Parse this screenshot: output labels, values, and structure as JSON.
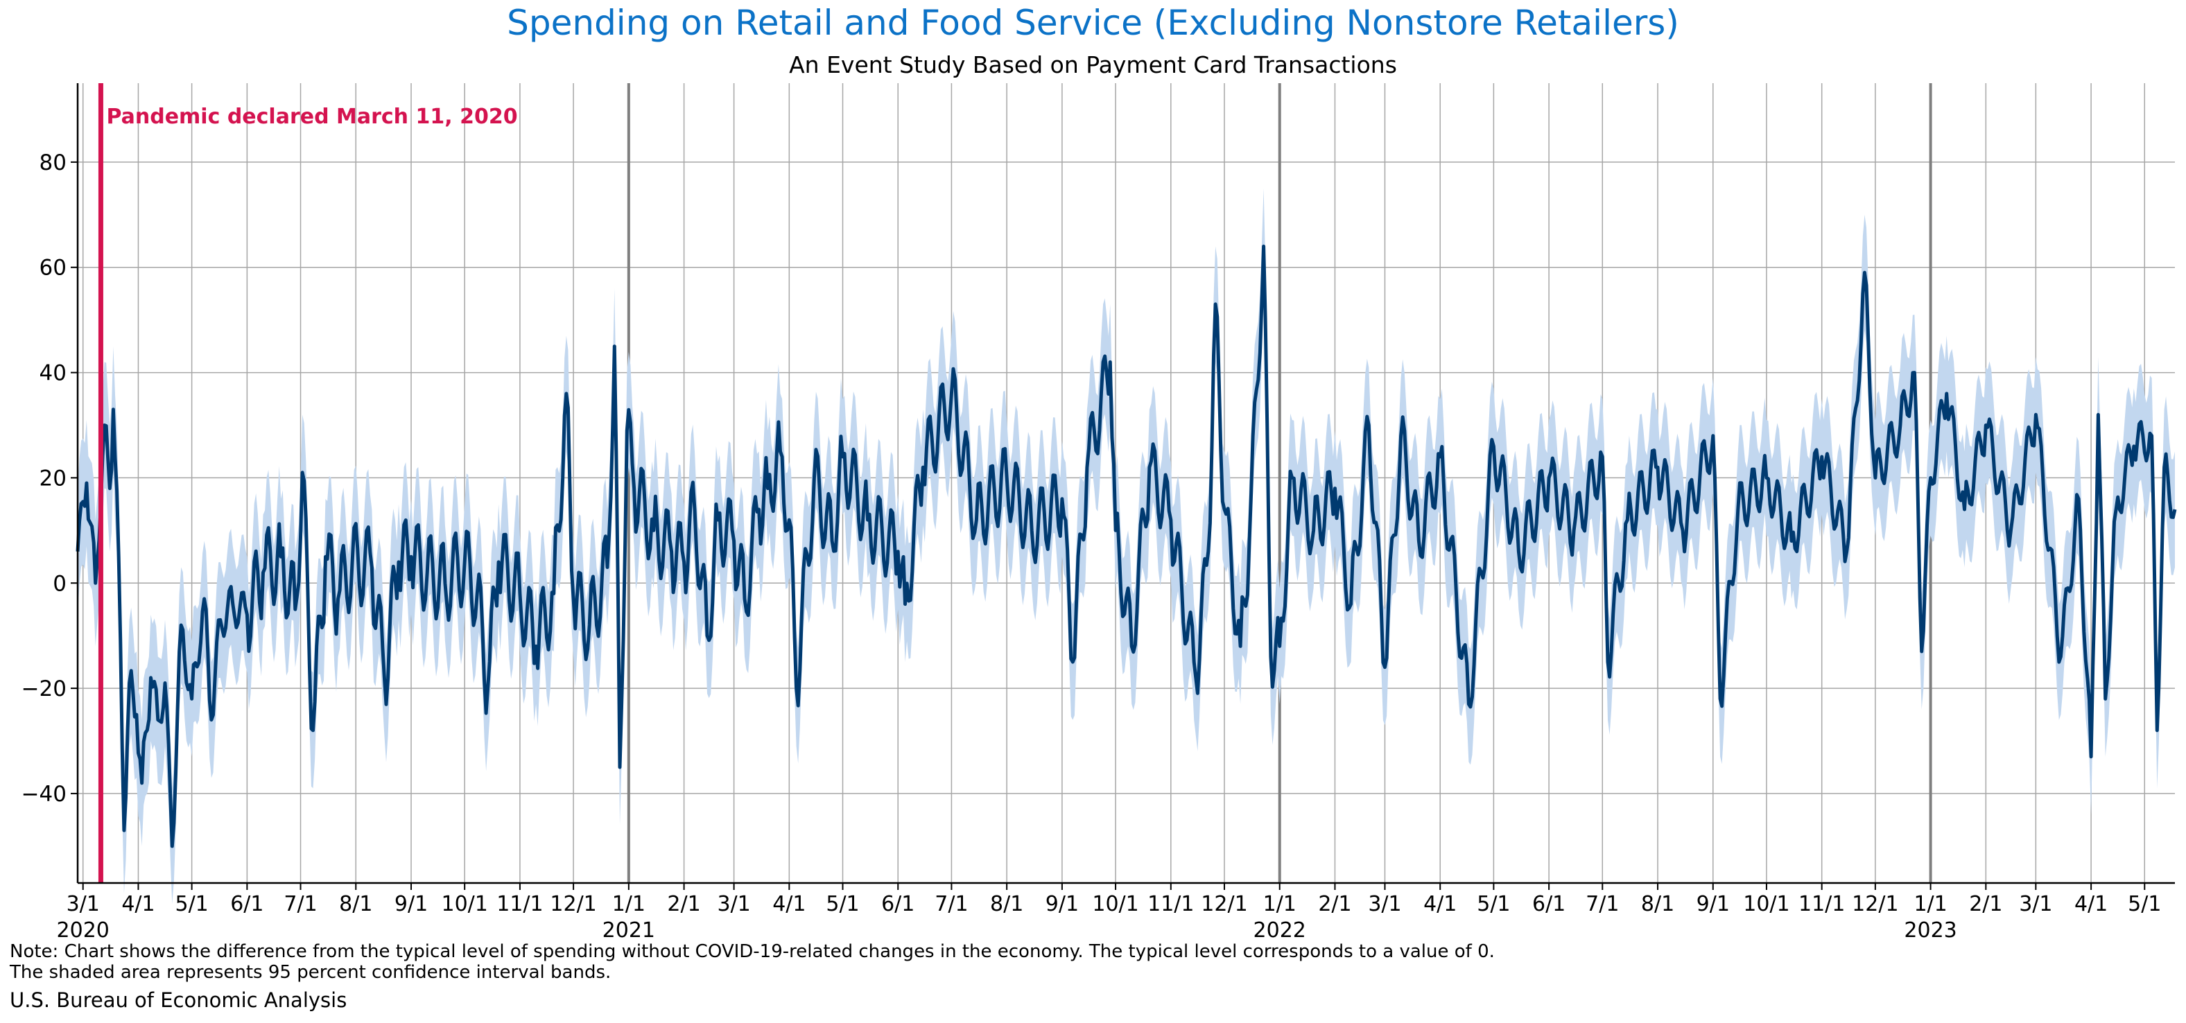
{
  "colors": {
    "title": "#0b72c7",
    "line": "#003a70",
    "band": "#c2d7ef",
    "pandemic": "#d4134f",
    "grid": "#a6a6a6",
    "year_line": "#7f7f7f"
  },
  "chart_data": {
    "type": "line",
    "title": "Spending on Retail and Food Service (Excluding Nonstore Retailers)",
    "subtitle": "An Event Study Based on Payment Card Transactions",
    "xlabel": "",
    "ylabel": "",
    "ylim": [
      -57,
      95
    ],
    "yticks": [
      -40,
      -20,
      0,
      20,
      40,
      60,
      80
    ],
    "grid": true,
    "xlim": [
      "2020-02-27",
      "2023-05-18"
    ],
    "x_tick_dates": [
      "2020-03-01",
      "2020-04-01",
      "2020-05-01",
      "2020-06-01",
      "2020-07-01",
      "2020-08-01",
      "2020-09-01",
      "2020-10-01",
      "2020-11-01",
      "2020-12-01",
      "2021-01-01",
      "2021-02-01",
      "2021-03-01",
      "2021-04-01",
      "2021-05-01",
      "2021-06-01",
      "2021-07-01",
      "2021-08-01",
      "2021-09-01",
      "2021-10-01",
      "2021-11-01",
      "2021-12-01",
      "2022-01-01",
      "2022-02-01",
      "2022-03-01",
      "2022-04-01",
      "2022-05-01",
      "2022-06-01",
      "2022-07-01",
      "2022-08-01",
      "2022-09-01",
      "2022-10-01",
      "2022-11-01",
      "2022-12-01",
      "2023-01-01",
      "2023-02-01",
      "2023-03-01",
      "2023-04-01",
      "2023-05-01"
    ],
    "x_tick_labels": [
      "3/1",
      "4/1",
      "5/1",
      "6/1",
      "7/1",
      "8/1",
      "9/1",
      "10/1",
      "11/1",
      "12/1",
      "1/1",
      "2/1",
      "3/1",
      "4/1",
      "5/1",
      "6/1",
      "7/1",
      "8/1",
      "9/1",
      "10/1",
      "11/1",
      "12/1",
      "1/1",
      "2/1",
      "3/1",
      "4/1",
      "5/1",
      "6/1",
      "7/1",
      "8/1",
      "9/1",
      "10/1",
      "11/1",
      "12/1",
      "1/1",
      "2/1",
      "3/1",
      "4/1",
      "5/1"
    ],
    "year_labels": [
      {
        "date": "2020-03-01",
        "label": "2020"
      },
      {
        "date": "2021-01-01",
        "label": "2021"
      },
      {
        "date": "2022-01-01",
        "label": "2022"
      },
      {
        "date": "2023-01-01",
        "label": "2023"
      }
    ],
    "event": {
      "date": "2020-03-11",
      "label": "Pandemic declared March 11, 2020"
    },
    "series": [
      {
        "points": [
          [
            "2020-02-27",
            6
          ],
          [
            "2020-03-03",
            19
          ],
          [
            "2020-03-08",
            0
          ],
          [
            "2020-03-13",
            30
          ],
          [
            "2020-03-16",
            18
          ],
          [
            "2020-03-18",
            33
          ],
          [
            "2020-03-21",
            5
          ],
          [
            "2020-03-24",
            -47
          ],
          [
            "2020-03-27",
            -19
          ],
          [
            "2020-03-31",
            -25
          ],
          [
            "2020-04-03",
            -38
          ],
          [
            "2020-04-08",
            -18
          ],
          [
            "2020-04-12",
            -26
          ],
          [
            "2020-04-16",
            -19
          ],
          [
            "2020-04-20",
            -50
          ],
          [
            "2020-04-25",
            -8
          ],
          [
            "2020-05-01",
            -22
          ],
          [
            "2020-05-08",
            -3
          ],
          [
            "2020-05-12",
            -26
          ],
          [
            "2020-05-17",
            -7
          ],
          [
            "2020-05-24",
            -4
          ],
          [
            "2020-06-01",
            -6
          ],
          [
            "2020-06-10",
            2
          ],
          [
            "2020-06-20",
            5
          ],
          [
            "2020-06-28",
            -5
          ],
          [
            "2020-07-02",
            21
          ],
          [
            "2020-07-08",
            -28
          ],
          [
            "2020-07-15",
            5
          ],
          [
            "2020-07-22",
            -3
          ],
          [
            "2020-07-30",
            4
          ],
          [
            "2020-08-10",
            3
          ],
          [
            "2020-08-17",
            -18
          ],
          [
            "2020-08-25",
            4
          ],
          [
            "2020-09-01",
            5
          ],
          [
            "2020-09-10",
            2
          ],
          [
            "2020-09-20",
            0
          ],
          [
            "2020-10-01",
            4
          ],
          [
            "2020-10-08",
            -2
          ],
          [
            "2020-10-14",
            -20
          ],
          [
            "2020-10-20",
            4
          ],
          [
            "2020-11-01",
            -2
          ],
          [
            "2020-11-10",
            -12
          ],
          [
            "2020-11-20",
            -2
          ],
          [
            "2020-11-27",
            36
          ],
          [
            "2020-12-01",
            -3
          ],
          [
            "2020-12-10",
            -8
          ],
          [
            "2020-12-20",
            3
          ],
          [
            "2020-12-24",
            45
          ],
          [
            "2020-12-27",
            -35
          ],
          [
            "2020-12-31",
            29
          ],
          [
            "2021-01-04",
            18
          ],
          [
            "2021-01-15",
            10
          ],
          [
            "2021-01-25",
            6
          ],
          [
            "2021-02-01",
            4
          ],
          [
            "2021-02-07",
            14
          ],
          [
            "2021-02-14",
            -10
          ],
          [
            "2021-02-20",
            12
          ],
          [
            "2021-03-01",
            8
          ],
          [
            "2021-03-07",
            -3
          ],
          [
            "2021-03-15",
            14
          ],
          [
            "2021-03-20",
            18
          ],
          [
            "2021-03-27",
            25
          ],
          [
            "2021-04-01",
            12
          ],
          [
            "2021-04-05",
            -20
          ],
          [
            "2021-04-15",
            20
          ],
          [
            "2021-04-25",
            8
          ],
          [
            "2021-05-01",
            24
          ],
          [
            "2021-05-15",
            12
          ],
          [
            "2021-06-01",
            6
          ],
          [
            "2021-06-05",
            -4
          ],
          [
            "2021-06-15",
            22
          ],
          [
            "2021-07-01",
            36
          ],
          [
            "2021-07-15",
            12
          ],
          [
            "2021-08-01",
            20
          ],
          [
            "2021-08-15",
            10
          ],
          [
            "2021-09-01",
            16
          ],
          [
            "2021-09-07",
            -15
          ],
          [
            "2021-09-15",
            22
          ],
          [
            "2021-09-28",
            42
          ],
          [
            "2021-10-01",
            10
          ],
          [
            "2021-10-10",
            -12
          ],
          [
            "2021-10-20",
            22
          ],
          [
            "2021-11-01",
            12
          ],
          [
            "2021-11-15",
            -18
          ],
          [
            "2021-11-22",
            6
          ],
          [
            "2021-11-26",
            53
          ],
          [
            "2021-12-01",
            14
          ],
          [
            "2021-12-10",
            -12
          ],
          [
            "2021-12-15",
            8
          ],
          [
            "2021-12-23",
            64
          ],
          [
            "2021-12-27",
            -14
          ],
          [
            "2022-01-01",
            -12
          ],
          [
            "2022-01-08",
            20
          ],
          [
            "2022-01-20",
            10
          ],
          [
            "2022-02-01",
            18
          ],
          [
            "2022-02-10",
            -4
          ],
          [
            "2022-02-20",
            30
          ],
          [
            "2022-03-01",
            -16
          ],
          [
            "2022-03-10",
            28
          ],
          [
            "2022-03-20",
            8
          ],
          [
            "2022-04-01",
            24
          ],
          [
            "2022-04-17",
            -23
          ],
          [
            "2022-05-01",
            26
          ],
          [
            "2022-05-15",
            6
          ],
          [
            "2022-06-01",
            20
          ],
          [
            "2022-06-15",
            10
          ],
          [
            "2022-07-01",
            24
          ],
          [
            "2022-07-04",
            -15
          ],
          [
            "2022-07-15",
            12
          ],
          [
            "2022-08-01",
            22
          ],
          [
            "2022-08-15",
            10
          ],
          [
            "2022-09-01",
            28
          ],
          [
            "2022-09-05",
            -22
          ],
          [
            "2022-09-15",
            14
          ],
          [
            "2022-10-01",
            20
          ],
          [
            "2022-10-15",
            8
          ],
          [
            "2022-11-01",
            24
          ],
          [
            "2022-11-15",
            6
          ],
          [
            "2022-11-25",
            59
          ],
          [
            "2022-12-01",
            20
          ],
          [
            "2022-12-15",
            30
          ],
          [
            "2022-12-23",
            40
          ],
          [
            "2022-12-27",
            -13
          ],
          [
            "2023-01-01",
            20
          ],
          [
            "2023-01-10",
            36
          ],
          [
            "2023-01-20",
            14
          ],
          [
            "2023-02-01",
            30
          ],
          [
            "2023-02-15",
            10
          ],
          [
            "2023-03-01",
            32
          ],
          [
            "2023-03-15",
            -14
          ],
          [
            "2023-03-25",
            16
          ],
          [
            "2023-04-01",
            -33
          ],
          [
            "2023-04-05",
            32
          ],
          [
            "2023-04-09",
            -22
          ],
          [
            "2023-04-15",
            14
          ],
          [
            "2023-04-25",
            26
          ],
          [
            "2023-05-05",
            28
          ],
          [
            "2023-05-08",
            -28
          ],
          [
            "2023-05-12",
            22
          ],
          [
            "2023-05-18",
            14
          ]
        ]
      }
    ]
  },
  "note": {
    "line1": "Note: Chart shows the difference from the typical level of spending without COVID-19-related changes in the economy. The typical level corresponds to a value of 0.",
    "line2": "The shaded area represents 95 percent confidence interval bands."
  },
  "source": "U.S. Bureau of Economic Analysis"
}
